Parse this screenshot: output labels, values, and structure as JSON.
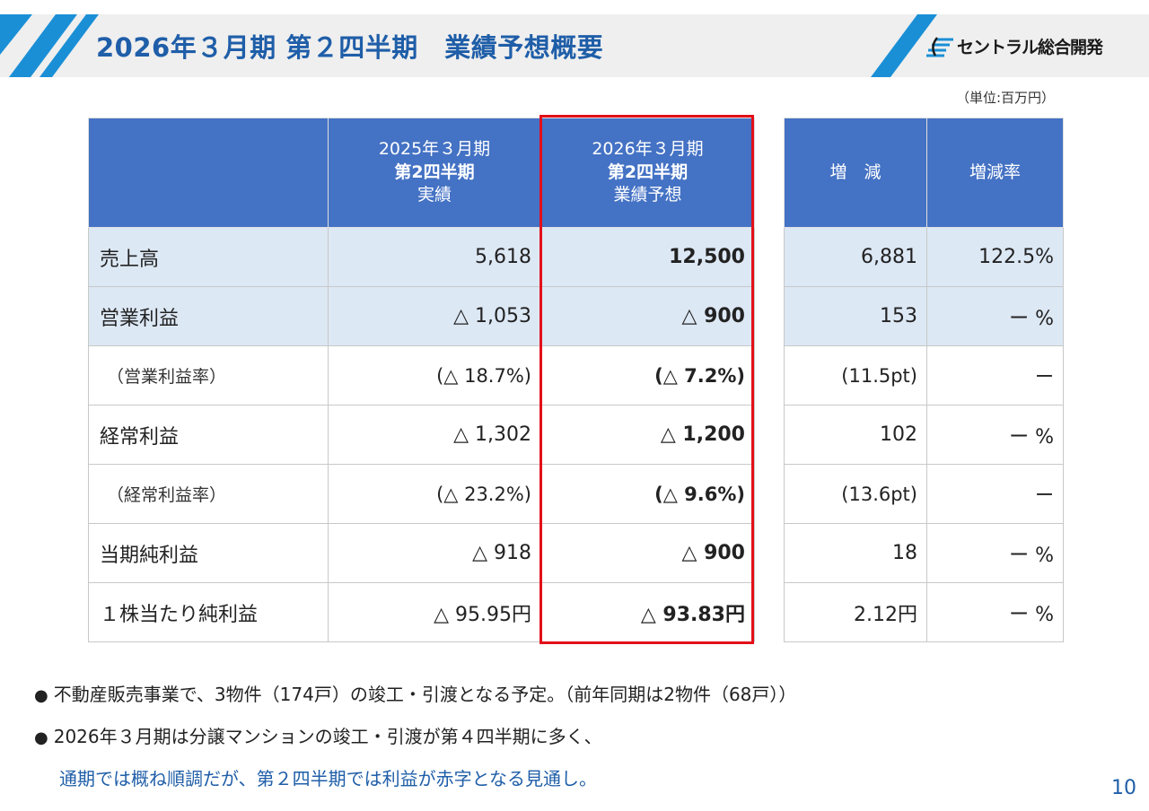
{
  "header": {
    "title": "2026年３月期 第２四半期　業績予想概要",
    "logo_text": "セントラル総合開発",
    "logo_icon": "company-logo-mark",
    "accent_color": "#1f5ea8",
    "stripe_color": "#1a8fd6"
  },
  "unit": "（単位:百万円）",
  "table": {
    "header_color": "#4472c4",
    "highlight_color": "#e3101a",
    "columns": {
      "prev_line1": "2025年３月期",
      "prev_line2": "第2四半期",
      "prev_line3": "実績",
      "fcst_line1": "2026年３月期",
      "fcst_line2": "第2四半期",
      "fcst_line3": "業績予想",
      "change": "増　減",
      "change_rate": "増減率"
    },
    "rows": [
      {
        "label": "売上高",
        "prev": "5,618",
        "forecast": "12,500",
        "change": "6,881",
        "rate": "122.5%"
      },
      {
        "label": "営業利益",
        "prev": "△ 1,053",
        "forecast": "△ 900",
        "change": "153",
        "rate": "ー %"
      },
      {
        "label": "（営業利益率）",
        "prev": "(△ 18.7%)",
        "forecast": "(△ 7.2%)",
        "change": "(11.5pt)",
        "rate": "ー"
      },
      {
        "label": "経常利益",
        "prev": "△ 1,302",
        "forecast": "△ 1,200",
        "change": "102",
        "rate": "ー %"
      },
      {
        "label": "（経常利益率）",
        "prev": "(△ 23.2%)",
        "forecast": "(△ 9.6%)",
        "change": "(13.6pt)",
        "rate": "ー"
      },
      {
        "label": "当期純利益",
        "prev": "△ 918",
        "forecast": "△ 900",
        "change": "18",
        "rate": "ー %"
      },
      {
        "label": "１株当たり純利益",
        "prev": "△ 95.95円",
        "forecast": "△ 93.83円",
        "change": "2.12円",
        "rate": "ー %"
      }
    ]
  },
  "notes": {
    "bullet": "●",
    "note1": "不動産販売事業で、3物件（174戸）の竣工・引渡となる予定。（前年同期は2物件（68戸））",
    "note2": "2026年３月期は分譲マンションの竣工・引渡が第４四半期に多く、",
    "note3": "通期では概ね順調だが、第２四半期では利益が赤字となる見通し。"
  },
  "page_number": "10"
}
